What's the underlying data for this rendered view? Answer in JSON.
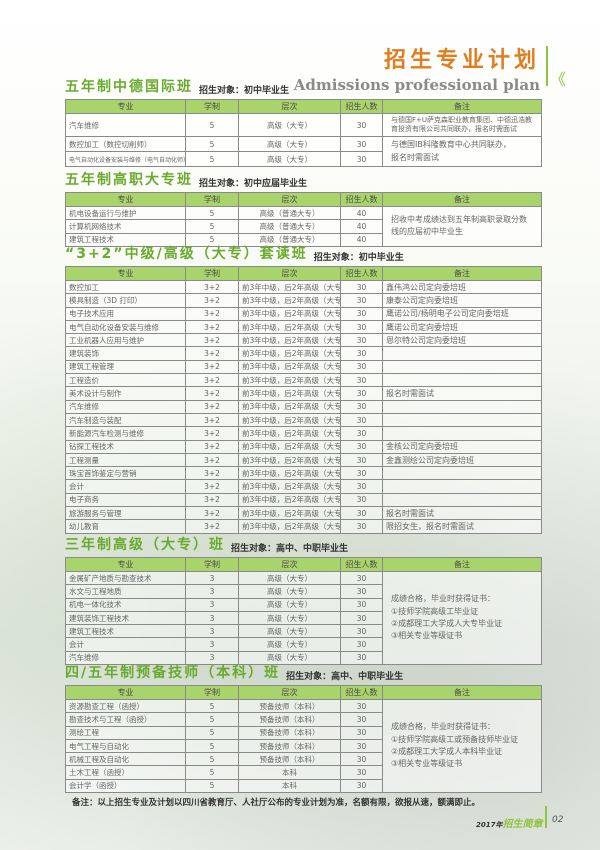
{
  "header": {
    "title_cn": "招生专业计划",
    "title_en": "Admissions professional plan",
    "chevron": "《"
  },
  "columns": [
    "专业",
    "学制",
    "层次",
    "招生人数",
    "备注"
  ],
  "target_label": "招生对象：",
  "sections": [
    {
      "title": "五年制中德国际班",
      "target": "初中毕业生",
      "rows": [
        [
          "汽车维修",
          "5",
          "高级（大专）",
          "30"
        ],
        [
          "数控加工（数控切削师）",
          "5",
          "高级（大专）",
          "30"
        ],
        [
          "电气自动化设备安装与维修（电气自动化师）",
          "5",
          "高级（大专）",
          "30"
        ]
      ],
      "notes": [
        {
          "rows": 1,
          "text": "与德国F+U萨克森职业教育集团、中德迅浩教育投资有限公司共同联办，报名时需面试"
        },
        {
          "rows": 2,
          "text": "与德国IB科隆教育中心共同联办，\n报名时需面试"
        }
      ]
    },
    {
      "title": "五年制高职大专班",
      "target": "初中应届毕业生",
      "rows": [
        [
          "机电设备运行与维护",
          "5",
          "高级（普通大专）",
          "40"
        ],
        [
          "计算机网络技术",
          "5",
          "高级（普通大专）",
          "40"
        ],
        [
          "建筑工程技术",
          "5",
          "高级（普通大专）",
          "40"
        ]
      ],
      "notes": [
        {
          "rows": 3,
          "text": "招收中考成绩达到五年制高职录取分数线的应届初中毕业生"
        }
      ]
    },
    {
      "title": "“3+2”中级/高级（大专）套读班",
      "target": "初中毕业生",
      "rows": [
        [
          "数控加工",
          "3+2",
          "前3年中级，后2年高级（大专）",
          "30",
          "鑫伟鸿公司定向委培班"
        ],
        [
          "模具制造（3D 打印）",
          "3+2",
          "前3年中级，后2年高级（大专）",
          "30",
          "康泰公司定向委培班"
        ],
        [
          "电子技术应用",
          "3+2",
          "前3年中级，后2年高级（大专）",
          "30",
          "鹰诺公司/杨明电子公司定向委培班"
        ],
        [
          "电气自动化设备安装与维修",
          "3+2",
          "前3年中级，后2年高级（大专）",
          "30",
          "鹰诺公司定向委培班"
        ],
        [
          "工业机器人应用与维护",
          "3+2",
          "前3年中级，后2年高级（大专）",
          "30",
          "恩尔特公司定向委培班"
        ],
        [
          "建筑装饰",
          "3+2",
          "前3年中级，后2年高级（大专）",
          "30",
          ""
        ],
        [
          "建筑工程管理",
          "3+2",
          "前3年中级，后2年高级（大专）",
          "30",
          ""
        ],
        [
          "工程造价",
          "3+2",
          "前3年中级，后2年高级（大专）",
          "30",
          ""
        ],
        [
          "美术设计与制作",
          "3+2",
          "前3年中级，后2年高级（大专）",
          "30",
          "报名时需面试"
        ],
        [
          "汽车维修",
          "3+2",
          "前3年中级，后2年高级（大专）",
          "30",
          ""
        ],
        [
          "汽车制造与装配",
          "3+2",
          "前3年中级，后2年高级（大专）",
          "30",
          ""
        ],
        [
          "新能源汽车检测与维修",
          "3+2",
          "前3年中级，后2年高级（大专）",
          "30",
          ""
        ],
        [
          "钻探工程技术",
          "3+2",
          "前3年中级，后2年高级（大专）",
          "30",
          "金核公司定向委培班"
        ],
        [
          "工程测量",
          "3+2",
          "前3年中级，后2年高级（大专）",
          "30",
          "金鑫测绘公司定向委培班"
        ],
        [
          "珠宝首饰鉴定与营销",
          "3+2",
          "前3年中级，后2年高级（大专）",
          "30",
          ""
        ],
        [
          "会计",
          "3+2",
          "前3年中级，后2年高级（大专）",
          "30",
          ""
        ],
        [
          "电子商务",
          "3+2",
          "前3年中级，后2年高级（大专）",
          "30",
          ""
        ],
        [
          "旅游服务与管理",
          "3+2",
          "前3年中级，后2年高级（大专）",
          "30",
          "报名时需面试"
        ],
        [
          "幼儿教育",
          "3+2",
          "前3年中级，后2年高级（大专）",
          "30",
          "限招女生，报名时需面试"
        ]
      ]
    },
    {
      "title": "三年制高级（大专）班",
      "target": "高中、中职毕业生",
      "rows": [
        [
          "金属矿产地质与勘查技术",
          "3",
          "高级（大专）",
          "30"
        ],
        [
          "水文与工程地质",
          "3",
          "高级（大专）",
          "30"
        ],
        [
          "机电一体化技术",
          "3",
          "高级（大专）",
          "30"
        ],
        [
          "建筑装饰工程技术",
          "3",
          "高级（大专）",
          "30"
        ],
        [
          "建筑工程技术",
          "3",
          "高级（大专）",
          "30"
        ],
        [
          "会计",
          "3",
          "高级（大专）",
          "30"
        ],
        [
          "汽车维修",
          "3",
          "高级（大专）",
          "30"
        ]
      ],
      "notes": [
        {
          "rows": 7,
          "text": "成绩合格，毕业时获得证书：\n①技师学院高级工毕业证\n②成都理工大学成人大专毕业证\n③相关专业等级证书"
        }
      ]
    },
    {
      "title": "四/五年制预备技师（本科）班",
      "target": "高中、中职毕业生",
      "rows": [
        [
          "资源勘查工程（函授）",
          "5",
          "预备技师（本科）",
          "30"
        ],
        [
          "勘查技术与工程（函授）",
          "5",
          "预备技师（本科）",
          "30"
        ],
        [
          "测绘工程",
          "5",
          "预备技师（本科）",
          "30"
        ],
        [
          "电气工程与自动化",
          "5",
          "预备技师（本科）",
          "30"
        ],
        [
          "机械工程及自动化",
          "5",
          "预备技师（本科）",
          "30"
        ],
        [
          "土木工程（函授）",
          "5",
          "本科",
          "30"
        ],
        [
          "会计学（函授）",
          "5",
          "本科",
          "30"
        ]
      ],
      "notes": [
        {
          "rows": 7,
          "text": "成绩合格，毕业时获得证书：\n①技师学院高级工或预备技师毕业证\n②成都理工大学成人本科毕业证\n③相关专业等级证书"
        }
      ]
    }
  ],
  "footer": {
    "note": "备注：以上招生专业及计划以四川省教育厅、人社厅公布的专业计划为准，名额有限，欲报从速，额满即止。",
    "year": "2017年",
    "brand": "招生简章",
    "page": "02"
  },
  "colors": {
    "accent_green": "#8cc63f",
    "header_fill": "#a9d46b",
    "title_orange": "#e27d1e"
  }
}
